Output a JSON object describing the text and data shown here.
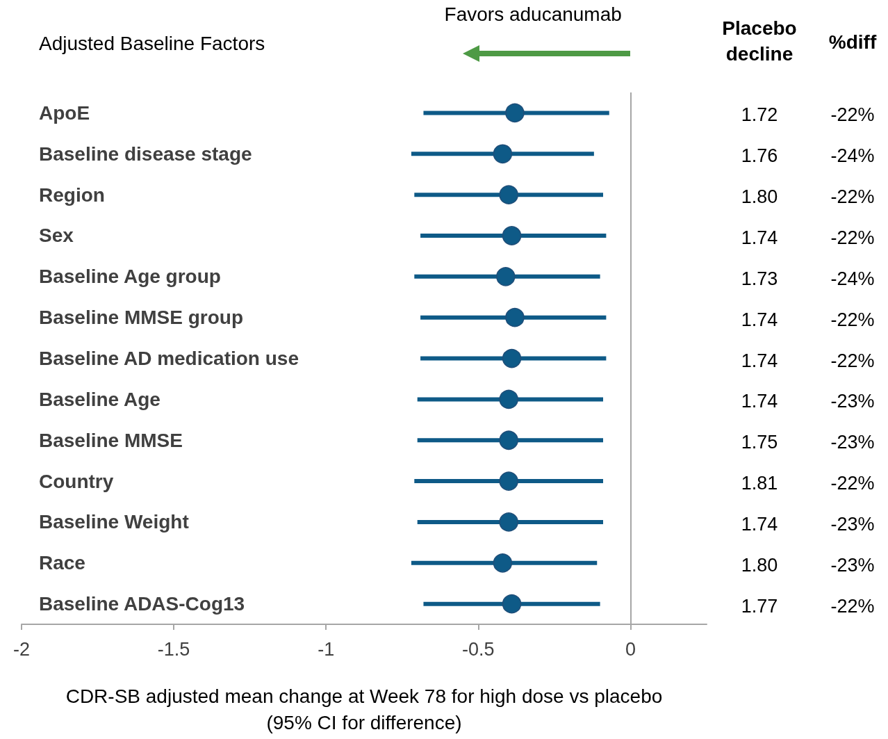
{
  "chart_data": {
    "type": "scatter",
    "orientation": "horizontal",
    "ylabel": "Adjusted Baseline Factors",
    "xlabel": "CDR-SB adjusted mean change at Week 78 for high dose vs placebo\n(95% CI for difference)",
    "categories": [
      "ApoE",
      "Baseline disease stage",
      "Region",
      "Sex",
      "Baseline Age group",
      "Baseline MMSE group",
      "Baseline AD medication use",
      "Baseline Age",
      "Baseline MMSE",
      "Country",
      "Baseline Weight",
      "Race",
      "Baseline ADAS-Cog13"
    ],
    "series": [
      {
        "color": "#0e5a87",
        "values": [
          -0.38,
          -0.42,
          -0.4,
          -0.39,
          -0.41,
          -0.38,
          -0.39,
          -0.4,
          -0.4,
          -0.4,
          -0.4,
          -0.42,
          -0.39
        ],
        "errors": [
          [
            -0.68,
            -0.07
          ],
          [
            -0.72,
            -0.12
          ],
          [
            -0.71,
            -0.09
          ],
          [
            -0.69,
            -0.08
          ],
          [
            -0.71,
            -0.1
          ],
          [
            -0.69,
            -0.08
          ],
          [
            -0.69,
            -0.08
          ],
          [
            -0.7,
            -0.09
          ],
          [
            -0.7,
            -0.09
          ],
          [
            -0.71,
            -0.09
          ],
          [
            -0.7,
            -0.09
          ],
          [
            -0.72,
            -0.11
          ],
          [
            -0.68,
            -0.1
          ]
        ]
      }
    ],
    "marker": "circle",
    "xlim": [
      -2,
      0.25
    ],
    "xticks": [
      -2,
      -1.5,
      -1,
      -0.5,
      0
    ],
    "grid": false,
    "ref_lines": [
      {
        "axis": "x",
        "value": 0,
        "color": "#a6a6a6"
      }
    ],
    "annotations": [
      "Favors aducanumab",
      "Placebo\ndecline",
      "%diff",
      "1.72",
      "-22%",
      "1.76",
      "-24%",
      "1.80",
      "-22%",
      "1.74",
      "-22%",
      "1.73",
      "-24%",
      "1.74",
      "-22%",
      "1.74",
      "-22%",
      "1.74",
      "-23%",
      "1.75",
      "-23%",
      "1.81",
      "-22%",
      "1.74",
      "-23%",
      "1.80",
      "-23%",
      "1.77",
      "-22%"
    ]
  }
}
